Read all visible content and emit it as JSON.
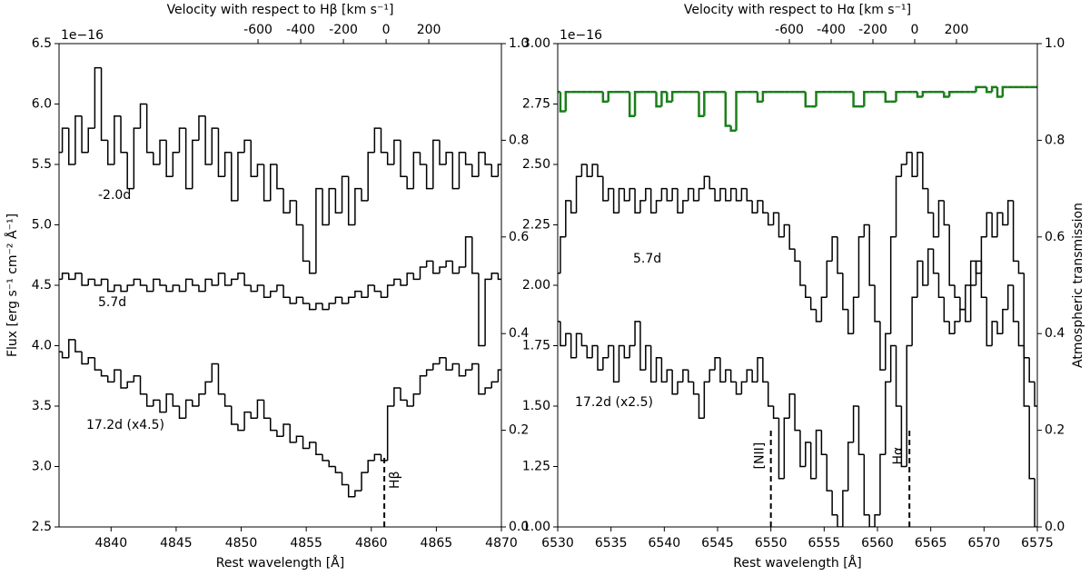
{
  "chart_data": [
    {
      "type": "line",
      "step": true,
      "xlabel": "Rest wavelength [Å]",
      "ylabel": "Flux [erg s⁻¹ cm⁻² Å⁻¹]",
      "x2label": "Velocity with respect to Hβ [km s⁻¹]",
      "offset_text": "1e−16",
      "xlim": [
        4836,
        4870
      ],
      "xticks": [
        4840,
        4845,
        4850,
        4855,
        4860,
        4865,
        4870
      ],
      "ylim": [
        2.5,
        6.5
      ],
      "yticks": [
        2.5,
        {
          "value": 3,
          "label": "3.0"
        },
        3.5,
        {
          "value": 4,
          "label": "4.0"
        },
        4.5,
        {
          "value": 5,
          "label": "5.0"
        },
        5.5,
        {
          "value": 6,
          "label": "6.0"
        },
        6.5
      ],
      "x2lim": [
        -1532,
        540
      ],
      "x2ticks": [
        -600,
        -400,
        -200,
        0,
        200
      ],
      "y2lim": [
        0,
        1
      ],
      "y2ticks": [
        {
          "value": 0,
          "label": "0.0"
        },
        0.2,
        0.4,
        0.6,
        0.8,
        {
          "value": 1,
          "label": "1.0"
        }
      ],
      "x": [
        4836,
        4836.5,
        4837,
        4837.5,
        4838,
        4838.5,
        4839,
        4839.5,
        4840,
        4840.5,
        4841,
        4841.5,
        4842,
        4842.5,
        4843,
        4843.5,
        4844,
        4844.5,
        4845,
        4845.5,
        4846,
        4846.5,
        4847,
        4847.5,
        4848,
        4848.5,
        4849,
        4849.5,
        4850,
        4850.5,
        4851,
        4851.5,
        4852,
        4852.5,
        4853,
        4853.5,
        4854,
        4854.5,
        4855,
        4855.5,
        4856,
        4856.5,
        4857,
        4857.5,
        4858,
        4858.5,
        4859,
        4859.5,
        4860,
        4860.5,
        4861,
        4861.5,
        4862,
        4862.5,
        4863,
        4863.5,
        4864,
        4864.5,
        4865,
        4865.5,
        4866,
        4866.5,
        4867,
        4867.5,
        4868,
        4868.5,
        4869,
        4869.5,
        4870
      ],
      "series": [
        {
          "name": "-2.0d",
          "color": "#000000",
          "values": [
            5.6,
            5.8,
            5.5,
            5.9,
            5.6,
            5.8,
            6.3,
            5.7,
            5.5,
            5.9,
            5.6,
            5.3,
            5.8,
            6.0,
            5.6,
            5.5,
            5.7,
            5.4,
            5.6,
            5.8,
            5.3,
            5.7,
            5.9,
            5.5,
            5.8,
            5.4,
            5.6,
            5.2,
            5.6,
            5.7,
            5.4,
            5.5,
            5.2,
            5.5,
            5.3,
            5.1,
            5.2,
            5.0,
            4.7,
            4.6,
            5.3,
            5.0,
            5.3,
            5.1,
            5.4,
            5.0,
            5.3,
            5.2,
            5.6,
            5.8,
            5.6,
            5.5,
            5.7,
            5.4,
            5.3,
            5.6,
            5.5,
            5.3,
            5.7,
            5.5,
            5.6,
            5.3,
            5.6,
            5.5,
            5.4,
            5.6,
            5.5,
            5.4,
            5.5
          ]
        },
        {
          "name": "5.7d",
          "color": "#000000",
          "values": [
            4.55,
            4.6,
            4.55,
            4.6,
            4.5,
            4.55,
            4.5,
            4.55,
            4.45,
            4.5,
            4.45,
            4.5,
            4.55,
            4.5,
            4.45,
            4.55,
            4.5,
            4.45,
            4.5,
            4.45,
            4.55,
            4.5,
            4.45,
            4.55,
            4.5,
            4.6,
            4.5,
            4.55,
            4.6,
            4.5,
            4.45,
            4.5,
            4.4,
            4.45,
            4.5,
            4.4,
            4.35,
            4.4,
            4.35,
            4.3,
            4.35,
            4.3,
            4.35,
            4.4,
            4.35,
            4.4,
            4.45,
            4.4,
            4.5,
            4.45,
            4.4,
            4.5,
            4.55,
            4.5,
            4.6,
            4.55,
            4.65,
            4.7,
            4.6,
            4.65,
            4.7,
            4.6,
            4.65,
            4.9,
            4.6,
            4.0,
            4.55,
            4.6,
            4.55
          ]
        },
        {
          "name": "17.2d (x4.5)",
          "color": "#000000",
          "values": [
            3.95,
            3.9,
            4.05,
            3.95,
            3.85,
            3.9,
            3.8,
            3.75,
            3.7,
            3.8,
            3.65,
            3.7,
            3.75,
            3.6,
            3.5,
            3.55,
            3.45,
            3.6,
            3.5,
            3.4,
            3.55,
            3.5,
            3.6,
            3.7,
            3.85,
            3.6,
            3.5,
            3.35,
            3.3,
            3.45,
            3.4,
            3.55,
            3.4,
            3.3,
            3.25,
            3.35,
            3.2,
            3.25,
            3.15,
            3.2,
            3.1,
            3.05,
            3.0,
            2.95,
            2.85,
            2.75,
            2.8,
            2.95,
            3.05,
            3.1,
            3.05,
            3.5,
            3.65,
            3.55,
            3.5,
            3.6,
            3.75,
            3.8,
            3.85,
            3.9,
            3.8,
            3.85,
            3.75,
            3.8,
            3.85,
            3.6,
            3.65,
            3.7,
            3.8
          ]
        }
      ],
      "markers": [
        {
          "x": 4861,
          "ymax": 3.1,
          "label": "Hβ"
        }
      ]
    },
    {
      "type": "line",
      "step": true,
      "xlabel": "Rest wavelength [Å]",
      "x2label": "Velocity with respect to Hα [km s⁻¹]",
      "y2label": "Atmospheric transmission",
      "offset_text": "1e−16",
      "xlim": [
        6530,
        6575
      ],
      "xticks": [
        6530,
        6535,
        6540,
        6545,
        6550,
        6555,
        6560,
        6565,
        6570,
        6575
      ],
      "ylim": [
        1,
        3
      ],
      "yticks": [
        {
          "value": 1,
          "label": "1.00"
        },
        1.25,
        {
          "value": 1.5,
          "label": "1.50"
        },
        1.75,
        {
          "value": 2,
          "label": "2.00"
        },
        2.25,
        {
          "value": 2.5,
          "label": "2.50"
        },
        2.75,
        {
          "value": 3,
          "label": "3.00"
        }
      ],
      "x2lim": [
        -1709,
        587
      ],
      "x2ticks": [
        -600,
        -400,
        -200,
        0,
        200
      ],
      "y2lim": [
        0,
        1
      ],
      "y2ticks": [
        {
          "value": 0,
          "label": "0.0"
        },
        0.2,
        0.4,
        0.6,
        0.8,
        {
          "value": 1,
          "label": "1.0"
        }
      ],
      "x": [
        6530,
        6530.5,
        6531,
        6531.5,
        6532,
        6532.5,
        6533,
        6533.5,
        6534,
        6534.5,
        6535,
        6535.5,
        6536,
        6536.5,
        6537,
        6537.5,
        6538,
        6538.5,
        6539,
        6539.5,
        6540,
        6540.5,
        6541,
        6541.5,
        6542,
        6542.5,
        6543,
        6543.5,
        6544,
        6544.5,
        6545,
        6545.5,
        6546,
        6546.5,
        6547,
        6547.5,
        6548,
        6548.5,
        6549,
        6549.5,
        6550,
        6550.5,
        6551,
        6551.5,
        6552,
        6552.5,
        6553,
        6553.5,
        6554,
        6554.5,
        6555,
        6555.5,
        6556,
        6556.5,
        6557,
        6557.5,
        6558,
        6558.5,
        6559,
        6559.5,
        6560,
        6560.5,
        6561,
        6561.5,
        6562,
        6562.5,
        6563,
        6563.5,
        6564,
        6564.5,
        6565,
        6565.5,
        6566,
        6566.5,
        6567,
        6567.5,
        6568,
        6568.5,
        6569,
        6569.5,
        6570,
        6570.5,
        6571,
        6571.5,
        6572,
        6572.5,
        6573,
        6573.5,
        6574,
        6574.5,
        6575
      ],
      "series": [
        {
          "name": "5.7d",
          "color": "#000000",
          "values": [
            2.05,
            2.2,
            2.35,
            2.3,
            2.45,
            2.5,
            2.45,
            2.5,
            2.45,
            2.35,
            2.4,
            2.3,
            2.4,
            2.35,
            2.4,
            2.3,
            2.35,
            2.4,
            2.3,
            2.35,
            2.4,
            2.35,
            2.4,
            2.3,
            2.35,
            2.4,
            2.35,
            2.4,
            2.45,
            2.4,
            2.35,
            2.4,
            2.35,
            2.4,
            2.35,
            2.4,
            2.35,
            2.3,
            2.35,
            2.3,
            2.25,
            2.3,
            2.2,
            2.25,
            2.15,
            2.1,
            2.0,
            1.95,
            1.9,
            1.85,
            1.95,
            2.1,
            2.2,
            2.05,
            1.9,
            1.8,
            1.95,
            2.2,
            2.25,
            2.0,
            1.85,
            1.65,
            1.8,
            2.2,
            2.45,
            2.5,
            2.55,
            2.45,
            2.55,
            2.4,
            2.3,
            2.2,
            2.35,
            2.25,
            2.0,
            1.95,
            1.9,
            2.0,
            2.1,
            2.05,
            2.2,
            2.3,
            2.2,
            2.3,
            2.25,
            2.35,
            2.1,
            2.05,
            1.7,
            1.6,
            1.5
          ]
        },
        {
          "name": "17.2d (x2.5)",
          "color": "#000000",
          "values": [
            1.85,
            1.75,
            1.8,
            1.7,
            1.8,
            1.75,
            1.7,
            1.75,
            1.65,
            1.7,
            1.75,
            1.6,
            1.75,
            1.7,
            1.75,
            1.85,
            1.65,
            1.75,
            1.6,
            1.7,
            1.6,
            1.65,
            1.55,
            1.6,
            1.65,
            1.6,
            1.55,
            1.45,
            1.6,
            1.65,
            1.7,
            1.6,
            1.65,
            1.6,
            1.55,
            1.6,
            1.65,
            1.6,
            1.7,
            1.6,
            1.5,
            1.45,
            1.2,
            1.45,
            1.55,
            1.4,
            1.25,
            1.35,
            1.2,
            1.4,
            1.3,
            1.15,
            1.05,
            1.0,
            1.15,
            1.35,
            1.5,
            1.3,
            1.05,
            1.0,
            1.05,
            1.3,
            1.6,
            1.75,
            1.5,
            1.25,
            1.75,
            1.95,
            2.1,
            2.0,
            2.15,
            2.05,
            1.95,
            1.85,
            1.8,
            1.85,
            1.9,
            1.85,
            2.0,
            2.1,
            1.95,
            1.75,
            1.85,
            1.8,
            1.9,
            2.0,
            1.85,
            1.75,
            1.5,
            1.2,
            1.0
          ]
        },
        {
          "axis": "y2",
          "color": "#1a7f1a",
          "values": [
            0.9,
            0.86,
            0.9,
            0.9,
            0.9,
            0.9,
            0.9,
            0.9,
            0.9,
            0.88,
            0.9,
            0.9,
            0.9,
            0.9,
            0.85,
            0.9,
            0.9,
            0.9,
            0.9,
            0.87,
            0.9,
            0.88,
            0.9,
            0.9,
            0.9,
            0.9,
            0.9,
            0.85,
            0.9,
            0.9,
            0.9,
            0.9,
            0.83,
            0.82,
            0.9,
            0.9,
            0.9,
            0.9,
            0.88,
            0.9,
            0.9,
            0.9,
            0.9,
            0.9,
            0.9,
            0.9,
            0.9,
            0.87,
            0.87,
            0.9,
            0.9,
            0.9,
            0.9,
            0.9,
            0.9,
            0.9,
            0.87,
            0.87,
            0.9,
            0.9,
            0.9,
            0.9,
            0.88,
            0.88,
            0.9,
            0.9,
            0.9,
            0.9,
            0.89,
            0.9,
            0.9,
            0.9,
            0.9,
            0.89,
            0.9,
            0.9,
            0.9,
            0.9,
            0.9,
            0.91,
            0.91,
            0.9,
            0.91,
            0.89,
            0.91,
            0.91,
            0.91,
            0.91,
            0.91,
            0.91,
            0.91
          ]
        }
      ],
      "markers": [
        {
          "x": 6550,
          "ymax": 1.4,
          "label": "[NII]"
        },
        {
          "x": 6563,
          "ymax": 1.4,
          "label": "Hα"
        }
      ]
    }
  ]
}
